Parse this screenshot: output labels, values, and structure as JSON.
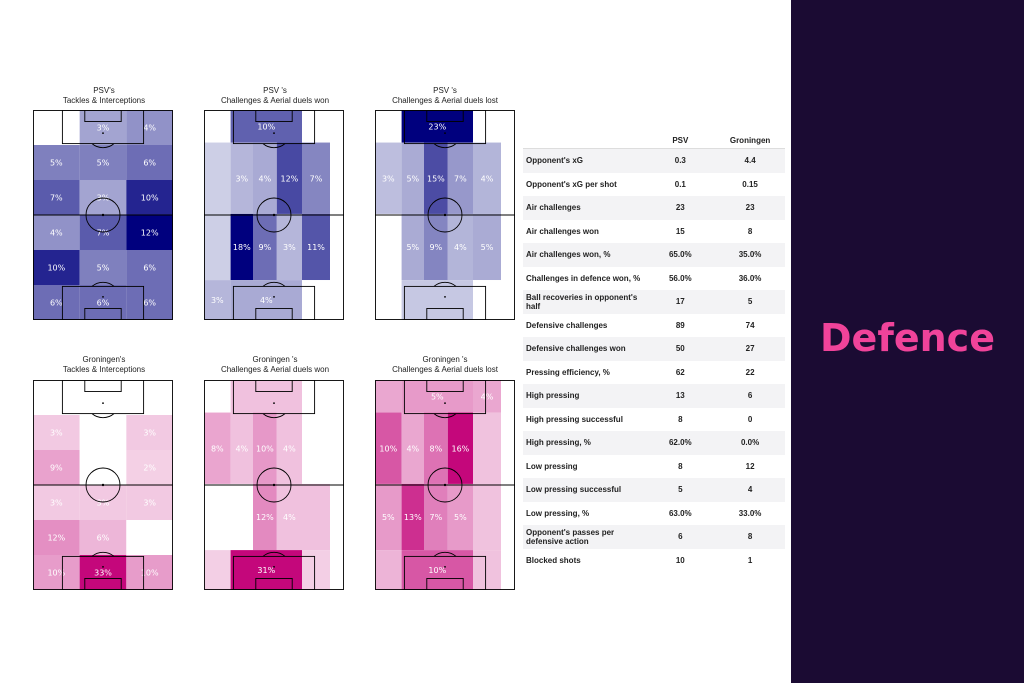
{
  "heading": "Defence",
  "colors": {
    "psv_scale": [
      "#eceef6",
      "#00007e"
    ],
    "groningen_scale": [
      "#fbeff6",
      "#c4077b"
    ],
    "background_panel": "#1b0b33",
    "heading": "#f0439a"
  },
  "chart_data": [
    {
      "type": "heatmap",
      "title_line1": "PSV's",
      "title_line2": "Tackles & Interceptions",
      "columns": 3,
      "rows": 6,
      "values": [
        [
          0,
          3,
          4
        ],
        [
          5,
          5,
          6
        ],
        [
          7,
          3,
          10
        ],
        [
          4,
          7,
          12
        ],
        [
          10,
          5,
          6
        ],
        [
          6,
          6,
          6
        ]
      ],
      "labels": [
        [
          "0%",
          "3%",
          "4%"
        ],
        [
          "5%",
          "5%",
          "6%"
        ],
        [
          "7%",
          "3%",
          "10%"
        ],
        [
          "4%",
          "7%",
          "12%"
        ],
        [
          "10%",
          "5%",
          "6%"
        ],
        [
          "6%",
          "6%",
          "6%"
        ]
      ],
      "max": 12,
      "scale": "psv"
    },
    {
      "type": "heatmap",
      "title_line1": "PSV 's",
      "title_line2": "Challenges & Aerial duels won",
      "columns": [
        0.19,
        0.16,
        0.17,
        0.18,
        0.2
      ],
      "row_heights": [
        0.155,
        0.34,
        0.315,
        0.19
      ],
      "cells": [
        {
          "r": 0,
          "c": 0,
          "cs": 1,
          "v": 0,
          "label": "0%"
        },
        {
          "r": 0,
          "c": 1,
          "cs": 3,
          "v": 10,
          "label": "10%"
        },
        {
          "r": 0,
          "c": 4,
          "cs": 1,
          "v": 0,
          "label": ""
        },
        {
          "r": 1,
          "c": 0,
          "cs": 1,
          "v": 1,
          "label": ""
        },
        {
          "r": 1,
          "c": 1,
          "cs": 1,
          "v": 3,
          "label": "3%"
        },
        {
          "r": 1,
          "c": 2,
          "cs": 1,
          "v": 4,
          "label": "4%"
        },
        {
          "r": 1,
          "c": 3,
          "cs": 1,
          "v": 12,
          "label": "12%"
        },
        {
          "r": 1,
          "c": 4,
          "cs": 1,
          "v": 7,
          "label": "7%"
        },
        {
          "r": 2,
          "c": 0,
          "cs": 1,
          "v": 1,
          "label": ""
        },
        {
          "r": 2,
          "c": 1,
          "cs": 1,
          "v": 18,
          "label": "18%"
        },
        {
          "r": 2,
          "c": 2,
          "cs": 1,
          "v": 9,
          "label": "9%"
        },
        {
          "r": 2,
          "c": 3,
          "cs": 1,
          "v": 3,
          "label": "3%"
        },
        {
          "r": 2,
          "c": 4,
          "cs": 1,
          "v": 11,
          "label": "11%"
        },
        {
          "r": 3,
          "c": 0,
          "cs": 1,
          "v": 3,
          "label": "3%"
        },
        {
          "r": 3,
          "c": 1,
          "cs": 3,
          "v": 4,
          "label": "4%"
        },
        {
          "r": 3,
          "c": 4,
          "cs": 1,
          "v": 0,
          "label": ""
        }
      ],
      "max": 18,
      "scale": "psv"
    },
    {
      "type": "heatmap",
      "title_line1": "PSV 's",
      "title_line2": "Challenges & Aerial duels lost",
      "columns": [
        0.19,
        0.16,
        0.17,
        0.18,
        0.2
      ],
      "row_heights": [
        0.155,
        0.34,
        0.315,
        0.19
      ],
      "cells": [
        {
          "r": 0,
          "c": 0,
          "cs": 1,
          "v": 0,
          "label": "0%"
        },
        {
          "r": 0,
          "c": 1,
          "cs": 3,
          "v": 23,
          "label": "23%"
        },
        {
          "r": 0,
          "c": 4,
          "cs": 1,
          "v": 0,
          "label": ""
        },
        {
          "r": 1,
          "c": 0,
          "cs": 1,
          "v": 3,
          "label": "3%"
        },
        {
          "r": 1,
          "c": 1,
          "cs": 1,
          "v": 5,
          "label": "5%"
        },
        {
          "r": 1,
          "c": 2,
          "cs": 1,
          "v": 15,
          "label": "15%"
        },
        {
          "r": 1,
          "c": 3,
          "cs": 1,
          "v": 7,
          "label": "7%"
        },
        {
          "r": 1,
          "c": 4,
          "cs": 1,
          "v": 4,
          "label": "4%"
        },
        {
          "r": 2,
          "c": 0,
          "cs": 1,
          "v": 0,
          "label": "0%"
        },
        {
          "r": 2,
          "c": 1,
          "cs": 1,
          "v": 5,
          "label": "5%"
        },
        {
          "r": 2,
          "c": 2,
          "cs": 1,
          "v": 9,
          "label": "9%"
        },
        {
          "r": 2,
          "c": 3,
          "cs": 1,
          "v": 4,
          "label": "4%"
        },
        {
          "r": 2,
          "c": 4,
          "cs": 1,
          "v": 5,
          "label": "5%"
        },
        {
          "r": 3,
          "c": 0,
          "cs": 1,
          "v": 0,
          "label": "0%"
        },
        {
          "r": 3,
          "c": 1,
          "cs": 3,
          "v": 2,
          "label": ""
        },
        {
          "r": 3,
          "c": 4,
          "cs": 1,
          "v": 0,
          "label": "0%"
        }
      ],
      "max": 23,
      "scale": "psv"
    },
    {
      "type": "heatmap",
      "title_line1": "Groningen's",
      "title_line2": "Tackles & Interceptions",
      "columns": 3,
      "rows": 6,
      "values": [
        [
          0,
          0,
          0
        ],
        [
          3,
          0,
          3
        ],
        [
          9,
          0,
          2
        ],
        [
          3,
          3,
          3
        ],
        [
          12,
          6,
          0
        ],
        [
          10,
          33,
          10
        ]
      ],
      "labels": [
        [
          "0%",
          "0%",
          "0%"
        ],
        [
          "3%",
          "0%",
          "3%"
        ],
        [
          "9%",
          "0%",
          "2%"
        ],
        [
          "3%",
          "3%",
          "3%"
        ],
        [
          "12%",
          "6%",
          "0%"
        ],
        [
          "10%",
          "33%",
          "10%"
        ]
      ],
      "max": 33,
      "scale": "groningen"
    },
    {
      "type": "heatmap",
      "title_line1": "Groningen 's",
      "title_line2": "Challenges & Aerial duels won",
      "columns": [
        0.19,
        0.16,
        0.17,
        0.18,
        0.2
      ],
      "row_heights": [
        0.155,
        0.34,
        0.315,
        0.19
      ],
      "cells": [
        {
          "r": 0,
          "c": 0,
          "cs": 1,
          "v": 0,
          "label": "0%"
        },
        {
          "r": 0,
          "c": 1,
          "cs": 3,
          "v": 4,
          "label": ""
        },
        {
          "r": 0,
          "c": 4,
          "cs": 1,
          "v": 0,
          "label": "0%"
        },
        {
          "r": 1,
          "c": 0,
          "cs": 1,
          "v": 8,
          "label": "8%"
        },
        {
          "r": 1,
          "c": 1,
          "cs": 1,
          "v": 4,
          "label": "4%"
        },
        {
          "r": 1,
          "c": 2,
          "cs": 1,
          "v": 10,
          "label": "10%"
        },
        {
          "r": 1,
          "c": 3,
          "cs": 1,
          "v": 4,
          "label": "4%"
        },
        {
          "r": 1,
          "c": 4,
          "cs": 1,
          "v": 0,
          "label": "0%"
        },
        {
          "r": 2,
          "c": 0,
          "cs": 1,
          "v": 0,
          "label": "0%"
        },
        {
          "r": 2,
          "c": 1,
          "cs": 1,
          "v": 0,
          "label": "0%"
        },
        {
          "r": 2,
          "c": 2,
          "cs": 1,
          "v": 12,
          "label": "12%"
        },
        {
          "r": 2,
          "c": 3,
          "cs": 1,
          "v": 4,
          "label": "4%"
        },
        {
          "r": 2,
          "c": 4,
          "cs": 1,
          "v": 4,
          "label": ""
        },
        {
          "r": 3,
          "c": 0,
          "cs": 1,
          "v": 2,
          "label": ""
        },
        {
          "r": 3,
          "c": 1,
          "cs": 3,
          "v": 31,
          "label": "31%"
        },
        {
          "r": 3,
          "c": 4,
          "cs": 1,
          "v": 2,
          "label": ""
        }
      ],
      "max": 31,
      "scale": "groningen"
    },
    {
      "type": "heatmap",
      "title_line1": "Groningen 's",
      "title_line2": "Challenges & Aerial duels lost",
      "columns": [
        0.19,
        0.16,
        0.17,
        0.18,
        0.2
      ],
      "row_heights": [
        0.155,
        0.34,
        0.315,
        0.19
      ],
      "cells": [
        {
          "r": 0,
          "c": 0,
          "cs": 1,
          "v": 4,
          "label": ""
        },
        {
          "r": 0,
          "c": 1,
          "cs": 3,
          "v": 5,
          "label": "5%"
        },
        {
          "r": 0,
          "c": 4,
          "cs": 1,
          "v": 4,
          "label": "4%"
        },
        {
          "r": 1,
          "c": 0,
          "cs": 1,
          "v": 10,
          "label": "10%"
        },
        {
          "r": 1,
          "c": 1,
          "cs": 1,
          "v": 4,
          "label": "4%"
        },
        {
          "r": 1,
          "c": 2,
          "cs": 1,
          "v": 8,
          "label": "8%"
        },
        {
          "r": 1,
          "c": 3,
          "cs": 1,
          "v": 16,
          "label": "16%"
        },
        {
          "r": 1,
          "c": 4,
          "cs": 1,
          "v": 2,
          "label": ""
        },
        {
          "r": 2,
          "c": 0,
          "cs": 1,
          "v": 5,
          "label": "5%"
        },
        {
          "r": 2,
          "c": 1,
          "cs": 1,
          "v": 13,
          "label": "13%"
        },
        {
          "r": 2,
          "c": 2,
          "cs": 1,
          "v": 7,
          "label": "7%"
        },
        {
          "r": 2,
          "c": 3,
          "cs": 1,
          "v": 5,
          "label": "5%"
        },
        {
          "r": 2,
          "c": 4,
          "cs": 1,
          "v": 2,
          "label": ""
        },
        {
          "r": 3,
          "c": 0,
          "cs": 1,
          "v": 3,
          "label": ""
        },
        {
          "r": 3,
          "c": 1,
          "cs": 3,
          "v": 10,
          "label": "10%"
        },
        {
          "r": 3,
          "c": 4,
          "cs": 1,
          "v": 2,
          "label": ""
        }
      ],
      "max": 16,
      "scale": "groningen"
    }
  ],
  "stats_table": {
    "headers": [
      "",
      "PSV",
      "Groningen"
    ],
    "rows": [
      [
        "Opponent's xG",
        "0.3",
        "4.4"
      ],
      [
        "Opponent's xG per shot",
        "0.1",
        "0.15"
      ],
      [
        "Air challenges",
        "23",
        "23"
      ],
      [
        "Air challenges won",
        "15",
        "8"
      ],
      [
        "Air challenges won, %",
        "65.0%",
        "35.0%"
      ],
      [
        "Challenges in defence won, %",
        "56.0%",
        "36.0%"
      ],
      [
        "Ball recoveries in opponent's half",
        "17",
        "5"
      ],
      [
        "Defensive challenges",
        "89",
        "74"
      ],
      [
        "Defensive challenges won",
        "50",
        "27"
      ],
      [
        "Pressing efficiency, %",
        "62",
        "22"
      ],
      [
        "High pressing",
        "13",
        "6"
      ],
      [
        "High pressing successful",
        "8",
        "0"
      ],
      [
        "High pressing, %",
        "62.0%",
        "0.0%"
      ],
      [
        "Low pressing",
        "8",
        "12"
      ],
      [
        "Low pressing successful",
        "5",
        "4"
      ],
      [
        "Low pressing, %",
        "63.0%",
        "33.0%"
      ],
      [
        "Opponent's passes per defensive action",
        "6",
        "8"
      ],
      [
        "Blocked shots",
        "10",
        "1"
      ]
    ]
  }
}
